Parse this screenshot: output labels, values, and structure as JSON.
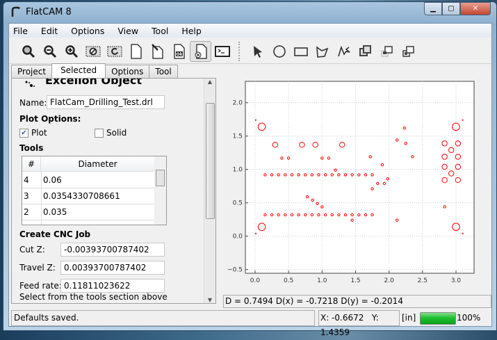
{
  "window": {
    "title": "FlatCAM 8"
  },
  "menu": [
    "File",
    "Edit",
    "Options",
    "View",
    "Tool",
    "Help"
  ],
  "tabs": [
    {
      "label": "Project"
    },
    {
      "label": "Selected",
      "active": true
    },
    {
      "label": "Options"
    },
    {
      "label": "Tool"
    }
  ],
  "panel": {
    "heading": "Excellon Object",
    "name_label": "Name:",
    "name_value": "FlatCam_Drilling_Test.drl",
    "plot_options_label": "Plot Options:",
    "plot_label": "Plot",
    "plot_checked": true,
    "solid_label": "Solid",
    "solid_checked": false,
    "tools_label": "Tools",
    "tools_headers": [
      "#",
      "Diameter"
    ],
    "tools_rows": [
      {
        "id": "4",
        "dia": "0.06"
      },
      {
        "id": "3",
        "dia": "0.0354330708661"
      },
      {
        "id": "2",
        "dia": "0.035"
      }
    ],
    "cnc_label": "Create CNC Job",
    "cut_z_label": "Cut Z:",
    "cut_z": "-0.00393700787402",
    "travel_z_label": "Travel Z:",
    "travel_z": "0.00393700787402",
    "feed_label": "Feed rate:",
    "feed": "0.11811023622",
    "hint": "Select from the tools section above"
  },
  "measure": "D = 0.7494  D(x) = -0.7218  D(y) = -0.2014",
  "status": {
    "message": "Defaults saved.",
    "x": "X: -0.6672",
    "y": "Y: 1.4359",
    "units": "[in]",
    "progress": 100,
    "progress_label": "100%"
  },
  "colors": {
    "drill": "#ff0000",
    "progress": "#1fbf2f"
  },
  "chart_data": {
    "type": "scatter",
    "xlim": [
      -0.145,
      3.27
    ],
    "ylim": [
      -0.555,
      2.32
    ],
    "xticks": [
      "0.0",
      "0.5",
      "1.0",
      "1.5",
      "2.0",
      "2.5",
      "3.0"
    ],
    "yticks": [
      "−0.5",
      "0.0",
      "0.5",
      "1.0",
      "1.5",
      "2.0"
    ],
    "grid": true,
    "groups": [
      {
        "dia": 0.11,
        "points": [
          [
            0.1,
            1.64
          ],
          [
            0.1,
            0.14
          ],
          [
            3.0,
            1.64
          ],
          [
            3.0,
            0.14
          ]
        ]
      },
      {
        "dia": 0.077,
        "points": [
          [
            0.3,
            1.37
          ],
          [
            0.7,
            1.37
          ],
          [
            0.9,
            1.37
          ],
          [
            1.3,
            1.37
          ],
          [
            2.83,
            1.39
          ],
          [
            3.03,
            1.39
          ],
          [
            2.93,
            1.29
          ],
          [
            2.83,
            1.19
          ],
          [
            3.03,
            1.19
          ],
          [
            2.83,
            1.04
          ],
          [
            3.03,
            1.04
          ],
          [
            2.93,
            0.94
          ],
          [
            2.83,
            0.84
          ],
          [
            3.03,
            0.84
          ]
        ]
      },
      {
        "dia": 0.035,
        "rows": {
          "x_from": 0.15,
          "x_to": 1.75,
          "x_step": 0.1,
          "y": [
            0.92,
            0.32
          ]
        },
        "points": [
          [
            0.4,
            1.17
          ],
          [
            0.5,
            1.17
          ],
          [
            1.0,
            1.17
          ],
          [
            1.1,
            1.17
          ],
          [
            1.2,
            0.99
          ],
          [
            1.72,
            1.19
          ],
          [
            1.9,
            1.07
          ],
          [
            1.98,
            0.86
          ],
          [
            1.83,
            0.79
          ],
          [
            1.93,
            0.79
          ],
          [
            1.75,
            0.71
          ],
          [
            2.12,
            1.44
          ],
          [
            2.23,
            1.62
          ],
          [
            2.25,
            1.39
          ],
          [
            2.35,
            1.19
          ],
          [
            0.78,
            0.59
          ],
          [
            0.86,
            0.54
          ],
          [
            0.93,
            0.49
          ],
          [
            1.0,
            0.44
          ],
          [
            1.45,
            0.24
          ],
          [
            2.12,
            0.24
          ],
          [
            2.83,
            0.44
          ]
        ]
      },
      {
        "dia": 0.008,
        "points": [
          [
            0.01,
            1.74
          ],
          [
            0.01,
            0.04
          ],
          [
            3.1,
            1.74
          ],
          [
            3.1,
            0.04
          ]
        ]
      }
    ]
  }
}
